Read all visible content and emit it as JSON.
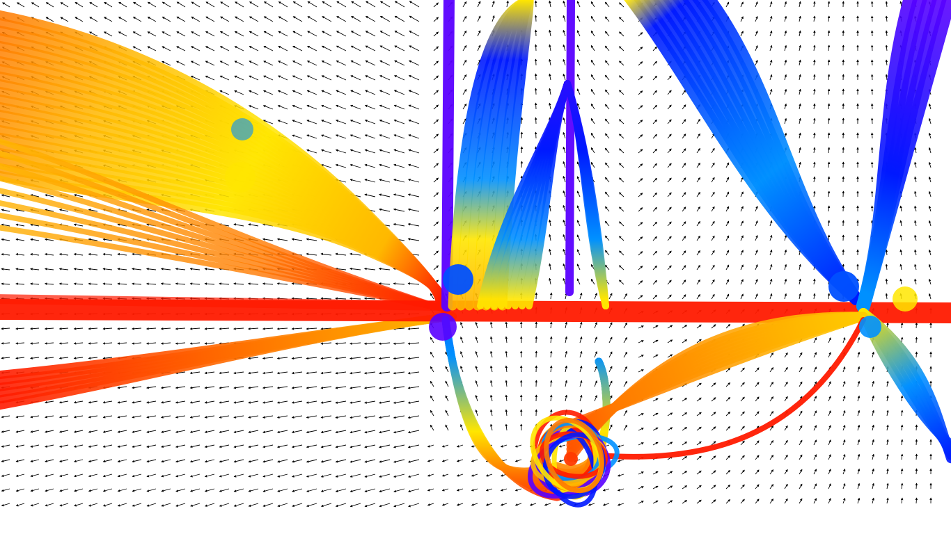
{
  "figure": {
    "kind": "vector-field-with-trajectory-bundles",
    "background": "#ffffff",
    "arrow_color": "#000000",
    "has_text": false,
    "colormap": [
      "#5a00ff",
      "#0018ff",
      "#0090ff",
      "#ffe600",
      "#ffb800",
      "#ff7a00",
      "#ff1a00"
    ],
    "fixed_points": [
      {
        "name": "left-saddle",
        "color": "#0050ff"
      },
      {
        "name": "right-saddle",
        "color": "#0050ff"
      },
      {
        "name": "bottom-vortex",
        "color": "#ff3a00"
      }
    ]
  }
}
